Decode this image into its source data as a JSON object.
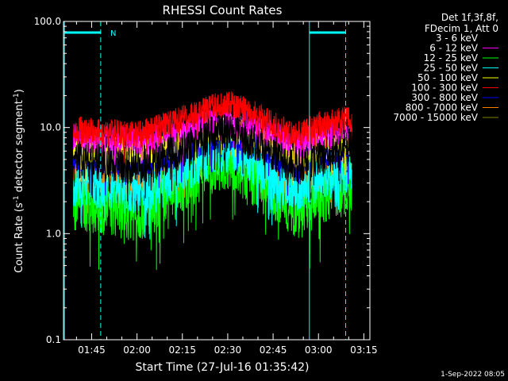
{
  "chart_data": {
    "type": "line",
    "title": "RHESSI Count Rates",
    "xlabel": "Start Time (27-Jul-16 01:35:42)",
    "ylabel": "Count Rate (s⁻¹ detector segment⁻¹)",
    "ylabel_main": "Count Rate (s",
    "ylabel_sup1": "-1",
    "ylabel_mid": " detector segment",
    "ylabel_sup2": "-1",
    "ylabel_end": ")",
    "y_scale": "log",
    "ylim": [
      0.1,
      100.0
    ],
    "y_ticks": [
      "0.1",
      "1.0",
      "10.0",
      "100.0"
    ],
    "x_ticks": [
      "01:45",
      "02:00",
      "02:15",
      "02:30",
      "02:45",
      "03:00",
      "03:15"
    ],
    "x_range_minutes": [
      "01:35:42",
      "03:17"
    ],
    "legend_header": [
      "Det 1f,3f,8f,",
      "FDecim 1, Att 0"
    ],
    "attenuator_label": "N",
    "timestamp": "1-Sep-2022 08:05",
    "series": [
      {
        "name": "3 - 6 keV",
        "color": "#000000",
        "values": [
          5.0,
          4.6,
          4.4,
          4.6,
          6.2,
          8.5,
          9.0,
          7.0,
          4.6,
          4.3,
          5.2,
          6.5
        ]
      },
      {
        "name": "6 - 12 keV",
        "color": "#ff00ff",
        "values": [
          8.0,
          7.6,
          7.3,
          7.5,
          9.0,
          11.0,
          11.5,
          9.5,
          7.3,
          7.0,
          8.0,
          9.0
        ]
      },
      {
        "name": "12 - 25 keV",
        "color": "#00ff00",
        "values": [
          2.0,
          1.8,
          1.6,
          1.8,
          3.0,
          4.5,
          5.0,
          3.2,
          1.8,
          1.7,
          2.3,
          3.0
        ]
      },
      {
        "name": "25 - 50 keV",
        "color": "#00ffff",
        "values": [
          3.0,
          2.8,
          2.6,
          2.8,
          4.0,
          5.5,
          6.0,
          4.2,
          2.8,
          2.7,
          3.3,
          4.0
        ]
      },
      {
        "name": "50 - 100 keV",
        "color": "#ffff00",
        "values": [
          6.5,
          6.0,
          5.7,
          6.0,
          7.5,
          9.5,
          10.0,
          8.0,
          5.8,
          5.6,
          6.5,
          7.5
        ]
      },
      {
        "name": "100 - 300 keV",
        "color": "#ff0000",
        "values": [
          9.5,
          9.0,
          8.5,
          9.5,
          12.0,
          15.5,
          17.0,
          13.0,
          9.0,
          8.8,
          10.5,
          12.0
        ]
      },
      {
        "name": "300 - 800 keV",
        "color": "#0000ff",
        "values": [
          5.5,
          5.0,
          4.8,
          5.0,
          6.5,
          8.5,
          9.0,
          7.0,
          4.9,
          4.7,
          5.7,
          6.6
        ]
      },
      {
        "name": "800 - 7000 keV",
        "color": "#ff8000",
        "values": [
          3.5,
          3.3,
          3.1,
          3.3,
          4.3,
          5.8,
          6.3,
          4.6,
          3.1,
          3.0,
          3.8,
          4.4
        ]
      },
      {
        "name": "7000 - 15000 keV",
        "color": "#808000",
        "values": [
          0,
          0,
          0,
          0,
          0,
          0,
          0,
          0,
          0,
          0,
          0,
          0
        ]
      }
    ],
    "x": [
      "01:40",
      "01:50",
      "02:00",
      "02:05",
      "02:15",
      "02:25",
      "02:30",
      "02:40",
      "02:50",
      "02:55",
      "03:00",
      "03:10"
    ],
    "attenuator_color": "#00ffff"
  }
}
